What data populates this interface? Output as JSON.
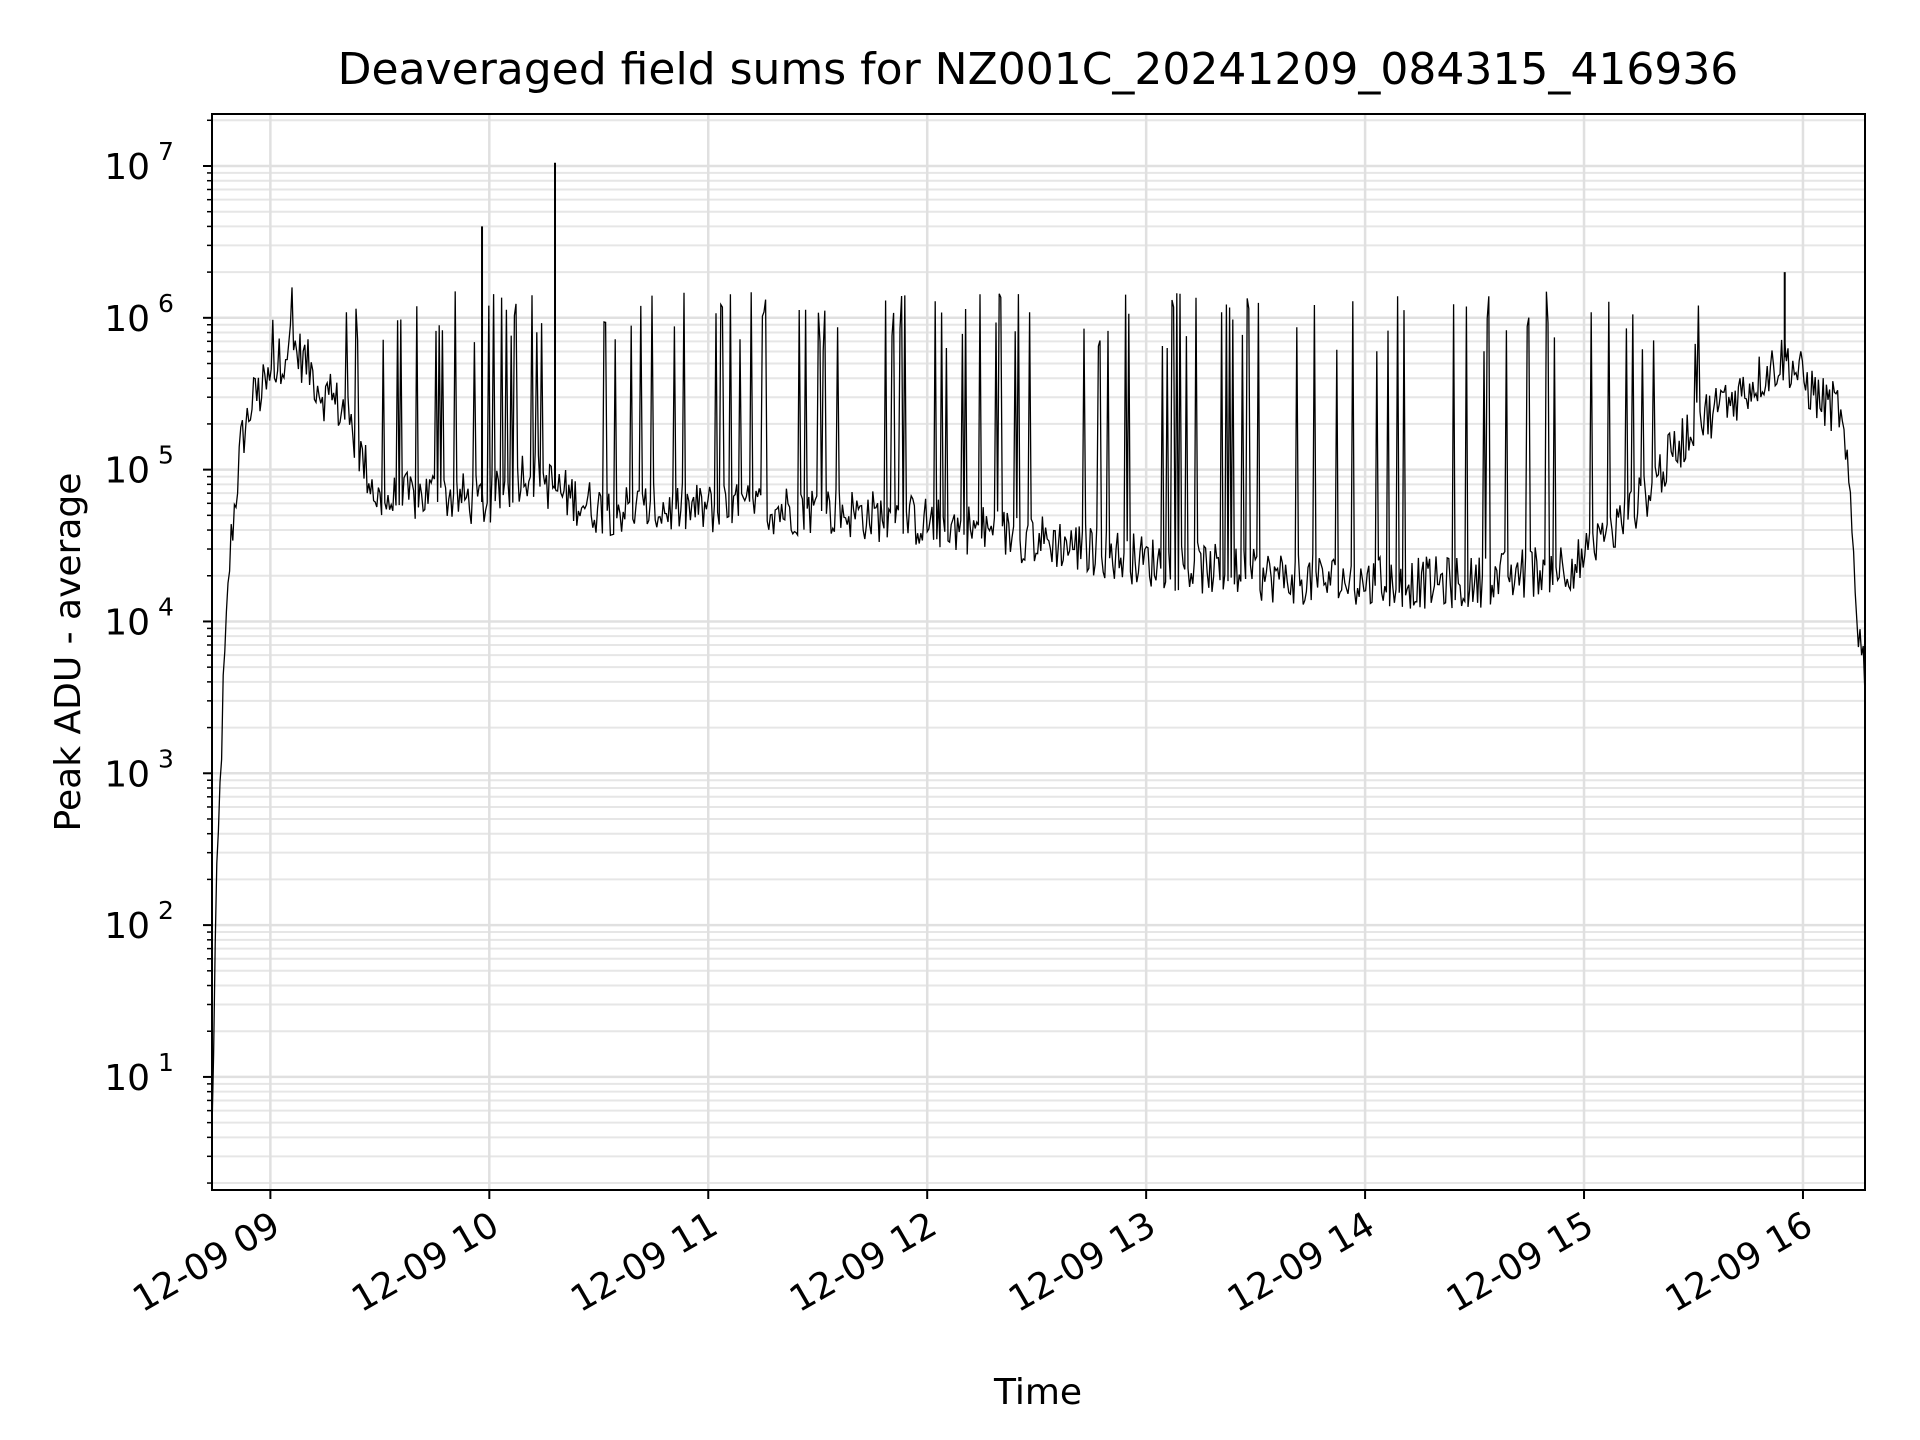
{
  "chart_data": {
    "type": "line",
    "title": "Deaveraged field sums for NZ001C_20241209_084315_416936",
    "xlabel": "Time",
    "ylabel": "Peak ADU - average",
    "yscale": "log",
    "ylim": [
      1.8,
      22000000
    ],
    "xlim": [
      "2024-12-09 08:44",
      "2024-12-09 16:17"
    ],
    "grid": true,
    "x_tick_labels": [
      "12-09 09",
      "12-09 10",
      "12-09 11",
      "12-09 12",
      "12-09 13",
      "12-09 14",
      "12-09 15",
      "12-09 16"
    ],
    "x_tick_times": [
      "2024-12-09 09:00",
      "2024-12-09 10:00",
      "2024-12-09 11:00",
      "2024-12-09 12:00",
      "2024-12-09 13:00",
      "2024-12-09 14:00",
      "2024-12-09 15:00",
      "2024-12-09 16:00"
    ],
    "y_tick_labels": [
      {
        "base": "10",
        "exp": "1"
      },
      {
        "base": "10",
        "exp": "2"
      },
      {
        "base": "10",
        "exp": "3"
      },
      {
        "base": "10",
        "exp": "4"
      },
      {
        "base": "10",
        "exp": "5"
      },
      {
        "base": "10",
        "exp": "6"
      },
      {
        "base": "10",
        "exp": "7"
      }
    ],
    "series": [
      {
        "color": "#000000",
        "x": [
          "2024-12-09 08:44",
          "2024-12-09 08:45",
          "2024-12-09 08:47",
          "2024-12-09 08:49",
          "2024-12-09 08:52",
          "2024-12-09 08:55",
          "2024-12-09 09:00",
          "2024-12-09 09:05",
          "2024-12-09 09:10",
          "2024-12-09 09:15",
          "2024-12-09 09:20",
          "2024-12-09 09:25",
          "2024-12-09 09:30",
          "2024-12-09 09:45",
          "2024-12-09 10:00",
          "2024-12-09 10:10",
          "2024-12-09 10:20",
          "2024-12-09 10:30",
          "2024-12-09 11:00",
          "2024-12-09 11:30",
          "2024-12-09 12:00",
          "2024-12-09 12:30",
          "2024-12-09 13:00",
          "2024-12-09 13:30",
          "2024-12-09 14:00",
          "2024-12-09 14:30",
          "2024-12-09 15:00",
          "2024-12-09 15:15",
          "2024-12-09 15:30",
          "2024-12-09 15:45",
          "2024-12-09 15:55",
          "2024-12-09 16:05",
          "2024-12-09 16:10",
          "2024-12-09 16:13",
          "2024-12-09 16:15",
          "2024-12-09 16:17"
        ],
        "y": [
          4,
          100,
          3000,
          30000,
          150000,
          280000,
          380000,
          700000,
          500000,
          300000,
          250000,
          120000,
          60000,
          70000,
          60000,
          100000,
          70000,
          55000,
          55000,
          55000,
          45000,
          35000,
          25000,
          20000,
          18000,
          18000,
          25000,
          60000,
          200000,
          350000,
          550000,
          280000,
          250000,
          60000,
          10000,
          4500
        ],
        "spikes": [
          {
            "x": "2024-12-09 09:58",
            "y": 4000000
          },
          {
            "x": "2024-12-09 10:18",
            "y": 10500000
          },
          {
            "x": "2024-12-09 15:55",
            "y": 2000000
          }
        ]
      }
    ]
  }
}
